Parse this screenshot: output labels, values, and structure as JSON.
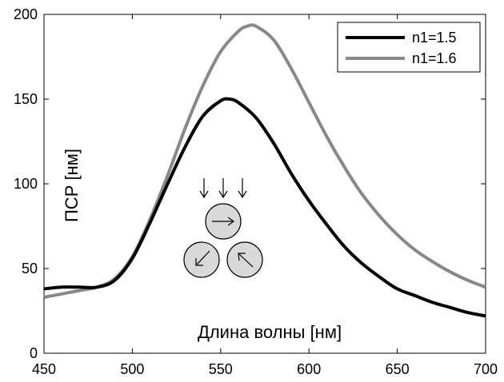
{
  "chart_data": {
    "type": "line",
    "title": "",
    "xlabel": "Длина волны [нм]",
    "ylabel": "ПСР [нм]",
    "xlim": [
      450,
      700
    ],
    "ylim": [
      0,
      200
    ],
    "xticks": [
      450,
      500,
      550,
      600,
      650,
      700
    ],
    "yticks": [
      0,
      50,
      100,
      150,
      200
    ],
    "grid": false,
    "legend_position": "top-right",
    "series": [
      {
        "name": "n1=1.5",
        "color": "#000000",
        "x": [
          450,
          460,
          470,
          480,
          490,
          500,
          510,
          520,
          530,
          540,
          550,
          555,
          560,
          570,
          580,
          590,
          600,
          610,
          620,
          630,
          640,
          650,
          660,
          670,
          680,
          690,
          700
        ],
        "y": [
          38,
          39,
          39,
          39,
          43,
          56,
          77,
          100,
          122,
          140,
          149,
          150,
          148,
          139,
          124,
          106,
          90,
          76,
          63,
          53,
          45,
          38,
          34,
          30,
          27,
          24,
          22
        ]
      },
      {
        "name": "n1=1.6",
        "color": "#888888",
        "x": [
          450,
          460,
          470,
          480,
          490,
          500,
          510,
          520,
          530,
          540,
          550,
          560,
          565,
          570,
          580,
          590,
          600,
          610,
          620,
          630,
          640,
          650,
          660,
          670,
          680,
          690,
          700
        ],
        "y": [
          33,
          35,
          37,
          39,
          44,
          57,
          79,
          105,
          133,
          158,
          178,
          190,
          193,
          193,
          185,
          168,
          148,
          128,
          110,
          94,
          81,
          70,
          61,
          54,
          48,
          43,
          39
        ]
      }
    ]
  },
  "inset": {
    "description_icons": [
      "down-arrow-icon",
      "rotating-sphere-icon"
    ]
  }
}
